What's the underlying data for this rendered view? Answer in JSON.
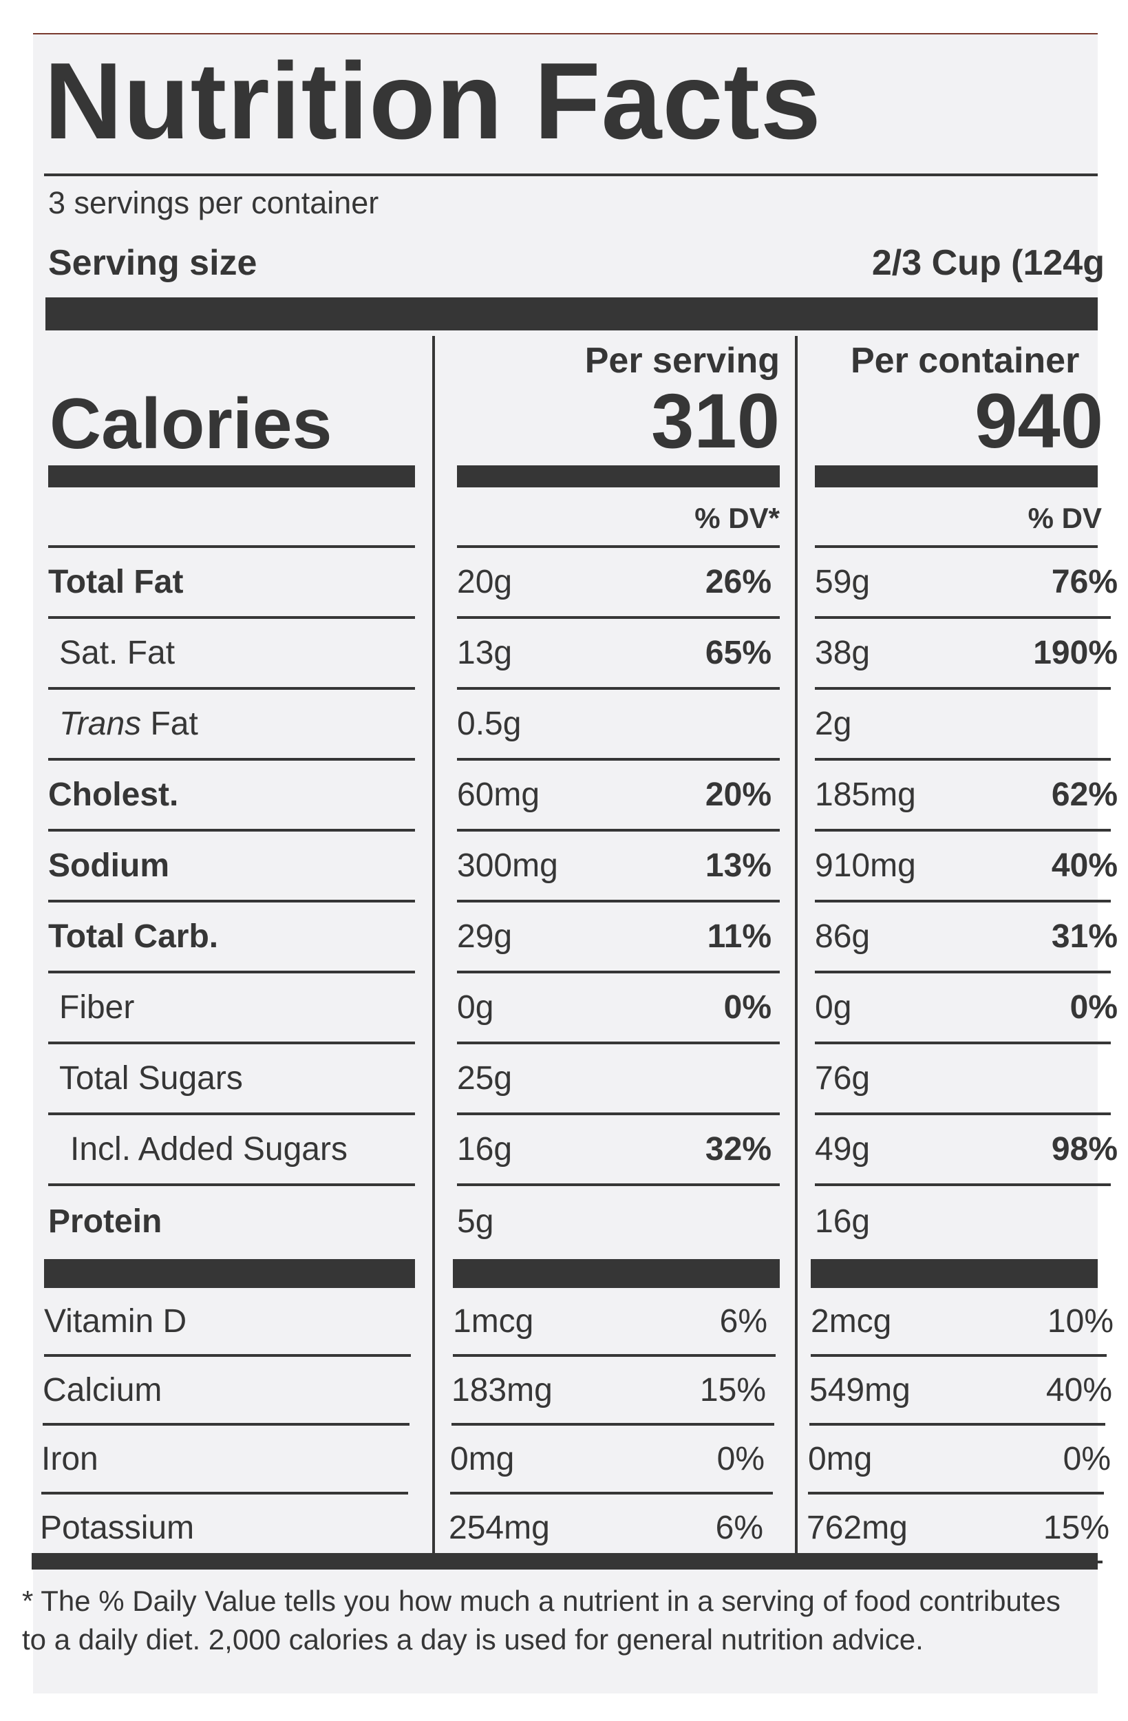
{
  "title": "Nutrition Facts",
  "servings_per_container": "3 servings per container",
  "serving_size_label": "Serving size",
  "serving_size_value": "2/3 Cup (124g",
  "calories_label": "Calories",
  "per_serving_label": "Per serving",
  "per_container_label": "Per container",
  "calories_per_serving": "310",
  "calories_per_container": "940",
  "dv_header_serving": "% DV*",
  "dv_header_container": "% DV",
  "nutrients": [
    {
      "name": "Total Fat",
      "bold": true,
      "indent": 0,
      "s_amt": "20g",
      "s_dv": "26%",
      "c_amt": "59g",
      "c_dv": "76%"
    },
    {
      "name": "Sat. Fat",
      "bold": false,
      "indent": 1,
      "s_amt": "13g",
      "s_dv": "65%",
      "c_amt": "38g",
      "c_dv": "190%"
    },
    {
      "name": "Fat",
      "italic_prefix": "Trans",
      "bold": false,
      "indent": 1,
      "s_amt": "0.5g",
      "s_dv": "",
      "c_amt": "2g",
      "c_dv": ""
    },
    {
      "name": "Cholest.",
      "bold": true,
      "indent": 0,
      "s_amt": "60mg",
      "s_dv": "20%",
      "c_amt": "185mg",
      "c_dv": "62%"
    },
    {
      "name": "Sodium",
      "bold": true,
      "indent": 0,
      "s_amt": "300mg",
      "s_dv": "13%",
      "c_amt": "910mg",
      "c_dv": "40%"
    },
    {
      "name": "Total Carb.",
      "bold": true,
      "indent": 0,
      "s_amt": "29g",
      "s_dv": "11%",
      "c_amt": "86g",
      "c_dv": "31%"
    },
    {
      "name": "Fiber",
      "bold": false,
      "indent": 1,
      "s_amt": "0g",
      "s_dv": "0%",
      "c_amt": "0g",
      "c_dv": "0%"
    },
    {
      "name": "Total Sugars",
      "bold": false,
      "indent": 1,
      "s_amt": "25g",
      "s_dv": "",
      "c_amt": "76g",
      "c_dv": ""
    },
    {
      "name": "Incl. Added Sugars",
      "bold": false,
      "indent": 2,
      "s_amt": "16g",
      "s_dv": "32%",
      "c_amt": "49g",
      "c_dv": "98%"
    },
    {
      "name": "Protein",
      "bold": true,
      "indent": 0,
      "s_amt": "5g",
      "s_dv": "",
      "c_amt": "16g",
      "c_dv": ""
    }
  ],
  "vitamins": [
    {
      "name": "Vitamin D",
      "s_amt": "1mcg",
      "s_dv": "6%",
      "c_amt": "2mcg",
      "c_dv": "10%"
    },
    {
      "name": "Calcium",
      "s_amt": "183mg",
      "s_dv": "15%",
      "c_amt": "549mg",
      "c_dv": "40%"
    },
    {
      "name": "Iron",
      "s_amt": "0mg",
      "s_dv": "0%",
      "c_amt": "0mg",
      "c_dv": "0%"
    },
    {
      "name": "Potassium",
      "s_amt": "254mg",
      "s_dv": "6%",
      "c_amt": "762mg",
      "c_dv": "15%"
    }
  ],
  "footnote": "* The % Daily Value tells you how much a nutrient in a serving of food contributes to a daily diet. 2,000 calories a day is used for general nutrition advice."
}
